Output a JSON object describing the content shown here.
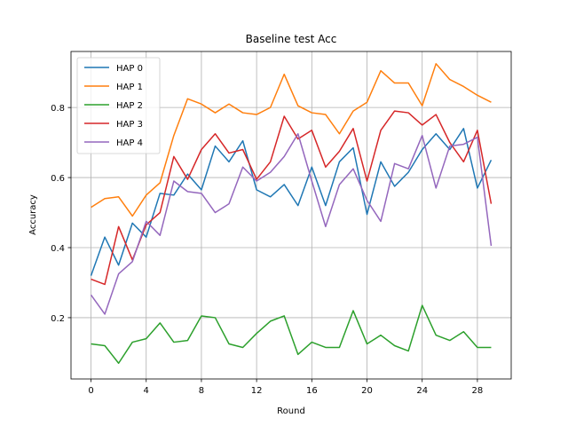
{
  "chart_data": {
    "type": "line",
    "title": "Baseline test Acc",
    "xlabel": "Round",
    "ylabel": "Accuracy",
    "xlim": [
      -1.45,
      30.45
    ],
    "ylim": [
      0.025,
      0.96
    ],
    "xticks": [
      0,
      4,
      8,
      12,
      16,
      20,
      24,
      28
    ],
    "yticks": [
      0.2,
      0.4,
      0.6,
      0.8
    ],
    "grid": true,
    "legend_position": "top-left",
    "x": [
      0,
      1,
      2,
      3,
      4,
      5,
      6,
      7,
      8,
      9,
      10,
      11,
      12,
      13,
      14,
      15,
      16,
      17,
      18,
      19,
      20,
      21,
      22,
      23,
      24,
      25,
      26,
      27,
      28,
      29
    ],
    "series": [
      {
        "name": "HAP 0",
        "color": "#1f77b4",
        "values": [
          0.32,
          0.43,
          0.35,
          0.47,
          0.43,
          0.555,
          0.55,
          0.61,
          0.565,
          0.69,
          0.645,
          0.705,
          0.565,
          0.545,
          0.58,
          0.52,
          0.63,
          0.52,
          0.645,
          0.685,
          0.495,
          0.645,
          0.575,
          0.615,
          0.68,
          0.725,
          0.68,
          0.74,
          0.57,
          0.65
        ]
      },
      {
        "name": "HAP 1",
        "color": "#ff7f0e",
        "values": [
          0.515,
          0.54,
          0.545,
          0.49,
          0.55,
          0.585,
          0.72,
          0.825,
          0.81,
          0.785,
          0.81,
          0.785,
          0.78,
          0.8,
          0.895,
          0.805,
          0.785,
          0.78,
          0.725,
          0.79,
          0.815,
          0.905,
          0.87,
          0.87,
          0.805,
          0.925,
          0.88,
          0.86,
          0.835,
          0.815
        ]
      },
      {
        "name": "HAP 2",
        "color": "#2ca02c",
        "values": [
          0.125,
          0.12,
          0.07,
          0.13,
          0.14,
          0.185,
          0.13,
          0.135,
          0.205,
          0.2,
          0.125,
          0.115,
          0.155,
          0.19,
          0.205,
          0.095,
          0.13,
          0.115,
          0.115,
          0.22,
          0.125,
          0.15,
          0.12,
          0.105,
          0.235,
          0.15,
          0.135,
          0.16,
          0.115,
          0.115
        ]
      },
      {
        "name": "HAP 3",
        "color": "#d62728",
        "values": [
          0.31,
          0.295,
          0.46,
          0.365,
          0.465,
          0.5,
          0.66,
          0.595,
          0.68,
          0.725,
          0.67,
          0.68,
          0.595,
          0.645,
          0.775,
          0.71,
          0.735,
          0.63,
          0.675,
          0.74,
          0.59,
          0.735,
          0.79,
          0.785,
          0.75,
          0.78,
          0.7,
          0.645,
          0.735,
          0.525
        ]
      },
      {
        "name": "HAP 4",
        "color": "#9467bd",
        "values": [
          0.265,
          0.21,
          0.325,
          0.36,
          0.475,
          0.435,
          0.59,
          0.56,
          0.555,
          0.5,
          0.525,
          0.63,
          0.59,
          0.615,
          0.66,
          0.725,
          0.59,
          0.46,
          0.58,
          0.625,
          0.535,
          0.475,
          0.64,
          0.625,
          0.72,
          0.57,
          0.69,
          0.695,
          0.715,
          0.405
        ]
      }
    ]
  }
}
